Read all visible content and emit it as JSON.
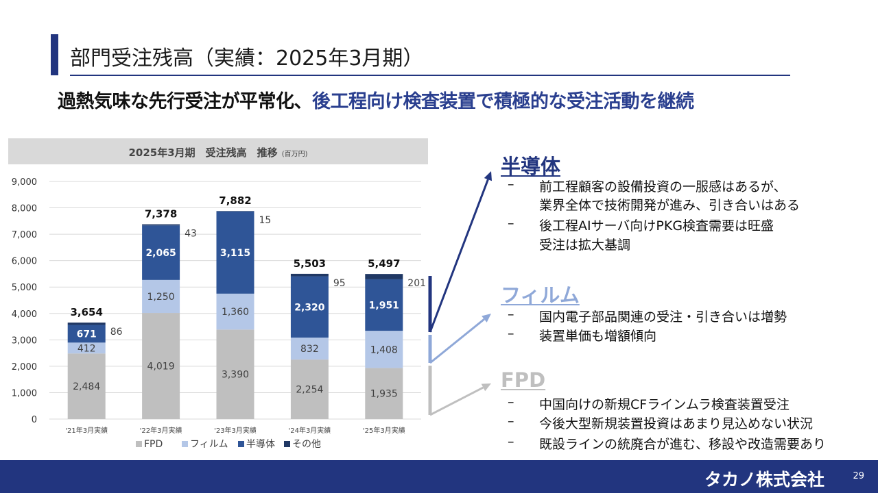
{
  "header": {
    "title": "部門受注残高（実績：2025年3月期）",
    "headline_black": "過熱気味な先行受注が平常化、",
    "headline_blue": "後工程向け検査装置で積極的な受注活動を継続"
  },
  "chart_header": {
    "title": "2025年3月期　受注残高　推移",
    "unit": "(百万円)"
  },
  "chart_data": {
    "type": "bar",
    "stacked": true,
    "categories": [
      "'21年3月実績",
      "'22年3月実績",
      "'23年3月実績",
      "'24年3月実績",
      "'25年3月実績"
    ],
    "series": [
      {
        "name": "FPD",
        "color": "#bfbfbf",
        "values": [
          2484,
          4019,
          3390,
          2254,
          1935
        ]
      },
      {
        "name": "フィルム",
        "color": "#b4c7e7",
        "values": [
          412,
          1250,
          1360,
          832,
          1408
        ]
      },
      {
        "name": "半導体",
        "color": "#2f5597",
        "values": [
          671,
          2065,
          3115,
          2320,
          1951
        ]
      },
      {
        "name": "その他",
        "color": "#203864",
        "values": [
          86,
          43,
          15,
          95,
          201
        ]
      }
    ],
    "totals": [
      "3,654",
      "7,378",
      "7,882",
      "5,503",
      "5,497"
    ],
    "y_ticks": [
      "0",
      "1,000",
      "2,000",
      "3,000",
      "4,000",
      "5,000",
      "6,000",
      "7,000",
      "8,000",
      "9,000"
    ],
    "ylim": [
      0,
      9000
    ],
    "grid": true,
    "legend": "bottom"
  },
  "sections": [
    {
      "heading": "半導体",
      "color": "#22357f",
      "bullets": [
        {
          "dash": "–",
          "text": "前工程顧客の設備投資の一服感はあるが、"
        },
        {
          "dash": "",
          "text": "業界全体で技術開発が進み、引き合いはある"
        },
        {
          "dash": "–",
          "text": "後工程AIサーバ向けPKG検査需要は旺盛"
        },
        {
          "dash": "",
          "text": "受注は拡大基調"
        }
      ]
    },
    {
      "heading": "フィルム",
      "color": "#8fa8d8",
      "bullets": [
        {
          "dash": "–",
          "text": "国内電子部品関連の受注・引き合いは増勢"
        },
        {
          "dash": "–",
          "text": "装置単価も増額傾向"
        }
      ]
    },
    {
      "heading": "FPD",
      "color": "#bfbfbf",
      "bullets": [
        {
          "dash": "–",
          "text": "中国向けの新規CFラインムラ検査装置受注"
        },
        {
          "dash": "–",
          "text": "今後大型新規装置投資はあまり見込めない状況"
        },
        {
          "dash": "–",
          "text": "既設ラインの統廃合が進む、移設や改造需要あり"
        }
      ]
    }
  ],
  "footer": {
    "company": "タカノ株式会社",
    "page_number": "29"
  }
}
